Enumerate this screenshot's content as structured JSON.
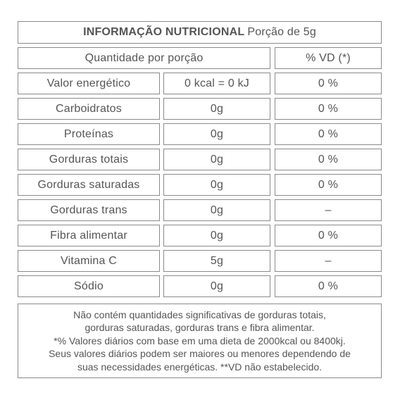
{
  "header": {
    "title_bold": "INFORMAÇÃO NUTRICIONAL",
    "title_regular": "Porção de 5g"
  },
  "columns": {
    "quantity_label": "Quantidade por porção",
    "vd_label": "% VD (*)"
  },
  "rows": [
    {
      "name": "Valor energético",
      "amount": "0 kcal = 0 kJ",
      "vd": "0 %"
    },
    {
      "name": "Carboidratos",
      "amount": "0g",
      "vd": "0 %"
    },
    {
      "name": "Proteínas",
      "amount": "0g",
      "vd": "0 %"
    },
    {
      "name": "Gorduras totais",
      "amount": "0g",
      "vd": "0 %"
    },
    {
      "name": "Gorduras saturadas",
      "amount": "0g",
      "vd": "0 %"
    },
    {
      "name": "Gorduras trans",
      "amount": "0g",
      "vd": "–"
    },
    {
      "name": "Fibra alimentar",
      "amount": "0g",
      "vd": "0 %"
    },
    {
      "name": "Vitamina C",
      "amount": "5g",
      "vd": "–"
    },
    {
      "name": "Sódio",
      "amount": "0g",
      "vd": "0 %"
    }
  ],
  "footnote": {
    "lines": [
      "Não contém quantidades significativas de gorduras totais,",
      "gorduras saturadas, gorduras trans e fibra alimentar.",
      "*% Valores diários com base em uma dieta de 2000kcal ou 8400kj.",
      "Seus valores diários podem ser maiores ou menores dependendo de",
      "suas necessidades energéticas. **VD não estabelecido."
    ]
  }
}
